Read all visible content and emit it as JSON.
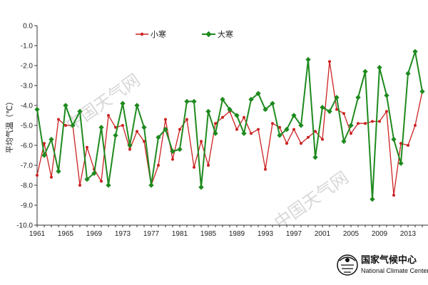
{
  "chart_data": {
    "type": "line",
    "title": "",
    "xlabel": "",
    "ylabel": "平均气温（℃）",
    "ylim": [
      -10.0,
      0.0
    ],
    "xlim": [
      1961,
      2015
    ],
    "y_ticks": [
      "0.0",
      "-1.0",
      "-2.0",
      "-3.0",
      "-4.0",
      "-5.0",
      "-6.0",
      "-7.0",
      "-8.0",
      "-9.0",
      "-10.0"
    ],
    "x_ticks": [
      "1961",
      "1965",
      "1969",
      "1973",
      "1977",
      "1981",
      "1985",
      "1989",
      "1993",
      "1997",
      "2001",
      "2005",
      "2009",
      "2013"
    ],
    "grid": false,
    "legend_position": "top-left",
    "x": [
      1961,
      1962,
      1963,
      1964,
      1965,
      1966,
      1967,
      1968,
      1969,
      1970,
      1971,
      1972,
      1973,
      1974,
      1975,
      1976,
      1977,
      1978,
      1979,
      1980,
      1981,
      1982,
      1983,
      1984,
      1985,
      1986,
      1987,
      1988,
      1989,
      1990,
      1991,
      1992,
      1993,
      1994,
      1995,
      1996,
      1997,
      1998,
      1999,
      2000,
      2001,
      2002,
      2003,
      2004,
      2005,
      2006,
      2007,
      2008,
      2009,
      2010,
      2011,
      2012,
      2013,
      2014,
      2015
    ],
    "series": [
      {
        "name": "小寒",
        "color": "#cc2222",
        "values": [
          -7.5,
          -5.9,
          -7.6,
          -4.7,
          -5.0,
          -5.0,
          -8.0,
          -6.1,
          -7.2,
          -7.8,
          -4.5,
          -5.1,
          -5.0,
          -6.2,
          -5.3,
          -5.8,
          -8.0,
          -7.0,
          -4.7,
          -6.7,
          -5.2,
          -4.7,
          -7.1,
          -5.8,
          -7.0,
          -4.9,
          -4.6,
          -4.3,
          -5.2,
          -4.6,
          -5.4,
          -5.2,
          -7.2,
          -4.9,
          -5.1,
          -5.9,
          -5.2,
          -5.9,
          -5.6,
          -5.3,
          -5.7,
          -1.8,
          -4.2,
          -4.4,
          -5.4,
          -4.9,
          -4.9,
          -4.8,
          -4.8,
          -4.3,
          -8.5,
          -5.9,
          -6.0,
          -5.0,
          -3.3
        ]
      },
      {
        "name": "大寒",
        "color": "#1e8a1e",
        "values": [
          -4.2,
          -6.5,
          -5.7,
          -7.3,
          -4.0,
          -5.0,
          -4.3,
          -7.7,
          -7.4,
          -5.1,
          -8.0,
          -5.5,
          -3.9,
          -6.0,
          -4.0,
          -5.1,
          -8.0,
          -5.6,
          -5.2,
          -6.3,
          -6.2,
          -3.8,
          -3.8,
          -8.1,
          -4.3,
          -5.4,
          -3.7,
          -4.2,
          -4.5,
          -5.4,
          -3.7,
          -3.4,
          -4.2,
          -3.9,
          -5.5,
          -5.2,
          -4.5,
          -5.0,
          -1.7,
          -6.6,
          -4.1,
          -4.3,
          -3.6,
          -5.8,
          -5.0,
          -3.6,
          -2.3,
          -8.7,
          -2.1,
          -3.5,
          -5.7,
          -6.9,
          -2.4,
          -1.3,
          -3.3
        ]
      }
    ]
  },
  "watermarks": [
    "中国天气网",
    "中国天气网"
  ],
  "logo": {
    "name_cn": "国家气候中心",
    "name_en": "National Climate Center",
    "icon": "national-climate-center-emblem-icon"
  }
}
